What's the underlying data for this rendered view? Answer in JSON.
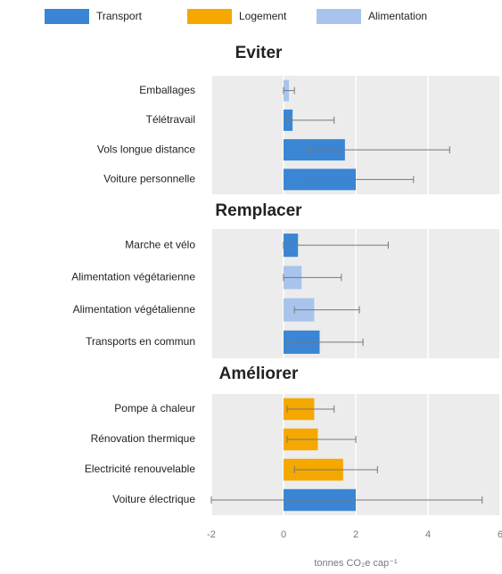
{
  "legend": [
    {
      "name": "Transport",
      "color": "#3a86d4"
    },
    {
      "name": "Logement",
      "color": "#f5a800"
    },
    {
      "name": "Alimentation",
      "color": "#a9c4ec"
    }
  ],
  "chart_data": [
    {
      "type": "bar",
      "title": "Eviter",
      "categories": [
        "Emballages",
        "Télétravail",
        "Vols longue distance",
        "Voiture personnelle"
      ],
      "values": [
        0.15,
        0.25,
        1.7,
        2.0
      ],
      "low": [
        0.0,
        0.1,
        0.7,
        0.6
      ],
      "high": [
        0.3,
        1.4,
        4.6,
        3.6
      ],
      "colors": [
        "#a9c4ec",
        "#3a86d4",
        "#3a86d4",
        "#3a86d4"
      ],
      "xlim": [
        -2,
        6
      ],
      "xticks": [
        -2,
        0,
        2,
        4,
        6
      ],
      "grid": true
    },
    {
      "type": "bar",
      "title": "Remplacer",
      "categories": [
        "Marche et vélo",
        "Alimentation végétarienne",
        "Alimentation végétalienne",
        "Transports en commun"
      ],
      "values": [
        0.4,
        0.5,
        0.85,
        1.0
      ],
      "low": [
        0.0,
        0.0,
        0.3,
        0.1
      ],
      "high": [
        2.9,
        1.6,
        2.1,
        2.2
      ],
      "colors": [
        "#3a86d4",
        "#a9c4ec",
        "#a9c4ec",
        "#3a86d4"
      ],
      "xlim": [
        -2,
        6
      ],
      "xticks": [
        -2,
        0,
        2,
        4,
        6
      ],
      "grid": true
    },
    {
      "type": "bar",
      "title": "Améliorer",
      "categories": [
        "Pompe à chaleur",
        "Rénovation thermique",
        "Electricité renouvelable",
        "Voiture électrique"
      ],
      "values": [
        0.85,
        0.95,
        1.65,
        2.0
      ],
      "low": [
        0.1,
        0.1,
        0.3,
        -2.0
      ],
      "high": [
        1.4,
        2.0,
        2.6,
        5.5
      ],
      "colors": [
        "#f5a800",
        "#f5a800",
        "#f5a800",
        "#3a86d4"
      ],
      "xlim": [
        -2,
        6
      ],
      "xticks": [
        -2,
        0,
        2,
        4,
        6
      ],
      "grid": true,
      "xlabel": "tonnes CO₂e cap⁻¹"
    }
  ]
}
